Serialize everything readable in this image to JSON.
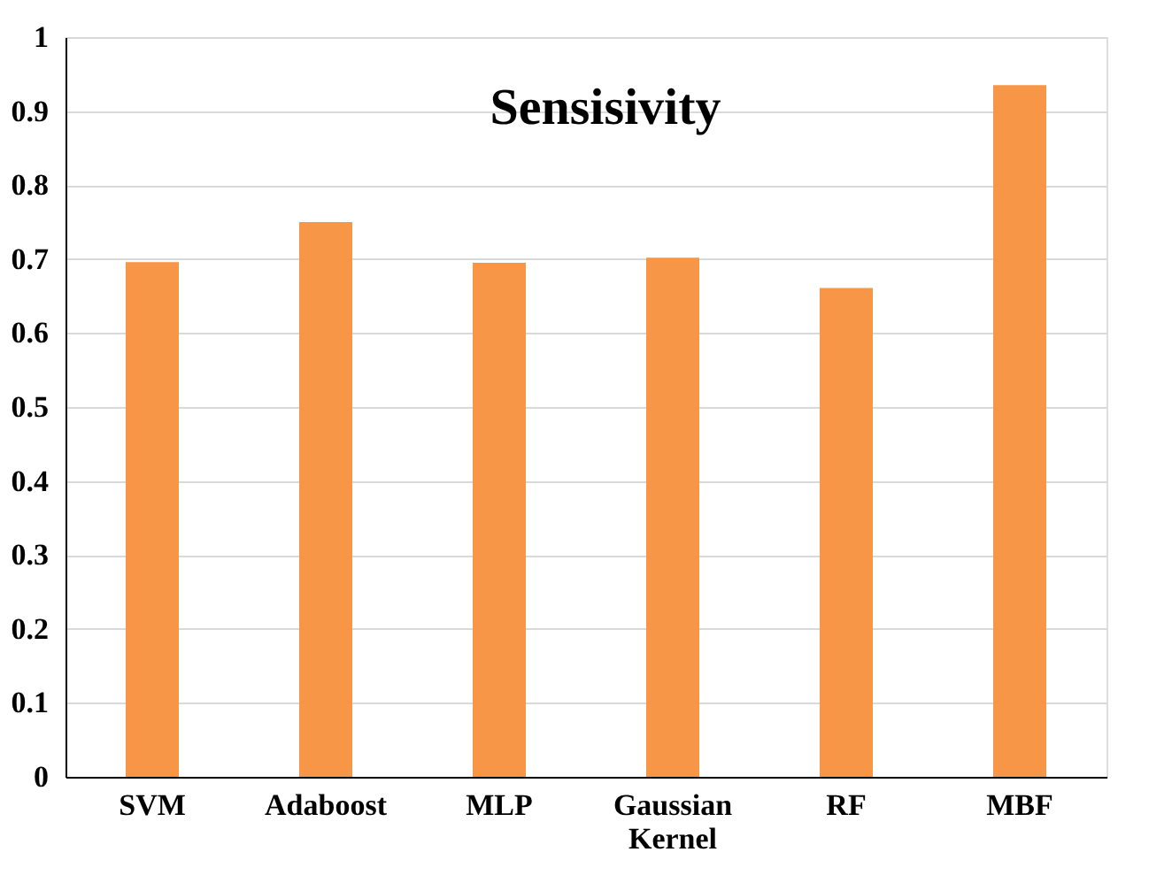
{
  "chart_data": {
    "type": "bar",
    "title": "Sensisivity",
    "categories": [
      "SVM",
      "Adaboost",
      "MLP",
      "Gaussian Kernel",
      "RF",
      "MBF"
    ],
    "values": [
      0.696,
      0.75,
      0.695,
      0.702,
      0.661,
      0.935
    ],
    "color": "#f79646",
    "ylim": [
      0,
      1
    ],
    "yticks": [
      0,
      0.1,
      0.2,
      0.3,
      0.4,
      0.5,
      0.6,
      0.7,
      0.8,
      0.9,
      1
    ],
    "grid": "y"
  }
}
